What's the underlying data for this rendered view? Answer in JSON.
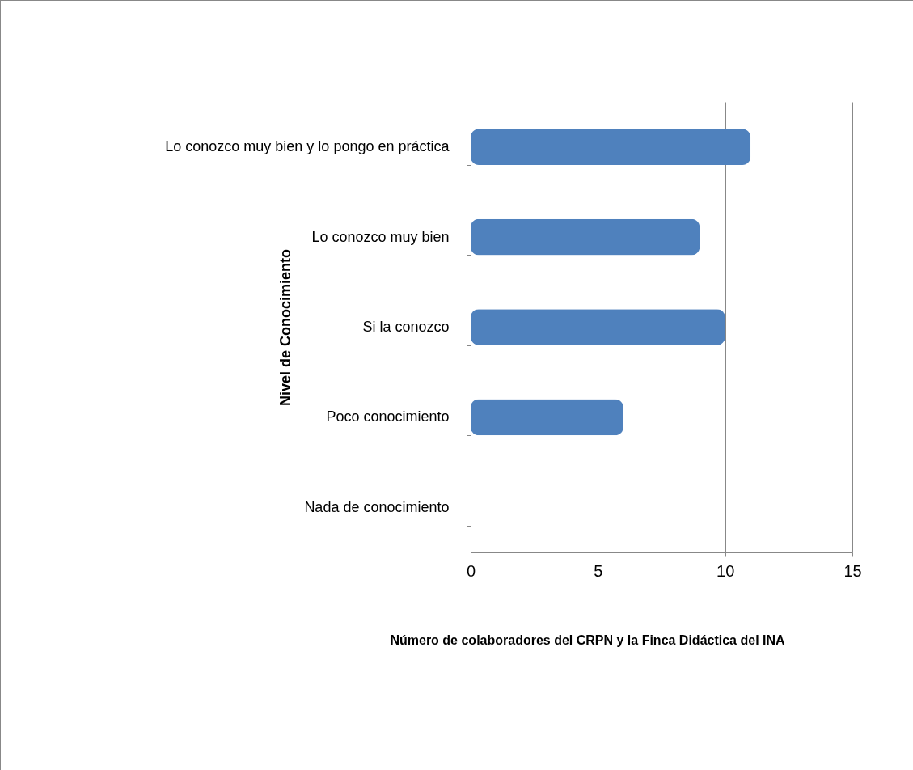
{
  "chart_data": {
    "type": "bar",
    "orientation": "horizontal",
    "xlabel": "Número de colaboradores del CRPN y la Finca Didáctica del INA",
    "ylabel": "Nivel de Conocimiento",
    "categories": [
      "Lo conozco muy bien y lo pongo en práctica",
      "Lo conozco muy bien",
      "Si la conozco",
      "Poco conocimiento",
      "Nada de conocimiento"
    ],
    "values": [
      11,
      9,
      10,
      6,
      0
    ],
    "color": "#4f81bd",
    "xlim": [
      0,
      15
    ],
    "xticks": [
      0,
      5,
      10,
      15
    ],
    "grid": "x"
  }
}
